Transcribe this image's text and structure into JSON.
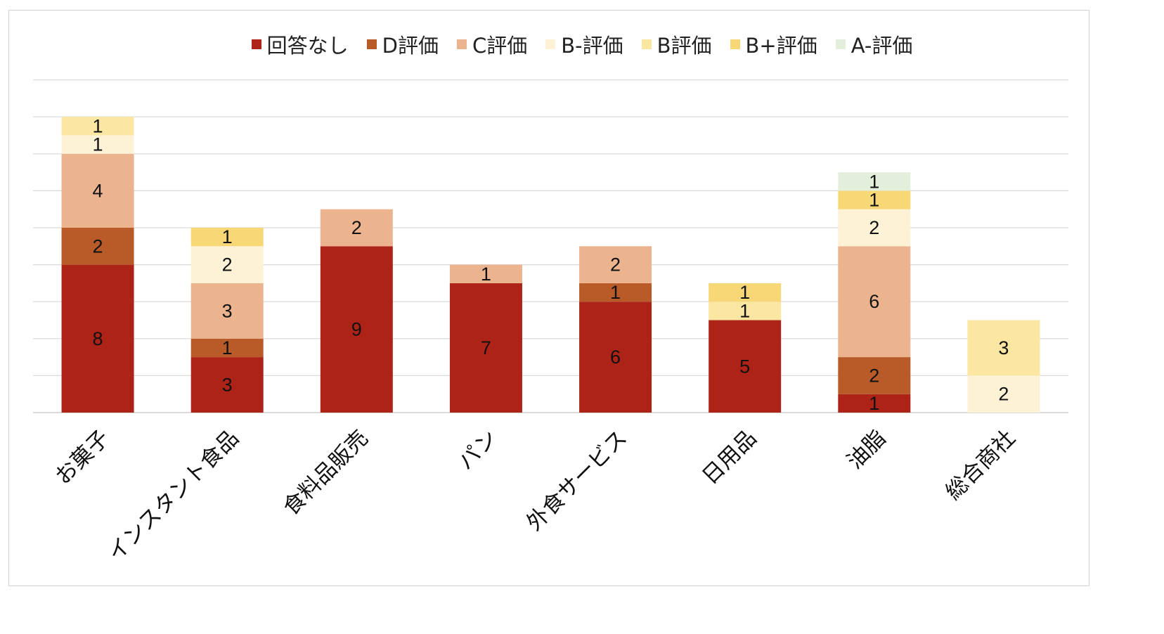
{
  "chart_data": {
    "type": "bar",
    "stacked": true,
    "title": "",
    "xlabel": "",
    "ylabel": "",
    "ylim": [
      0,
      18
    ],
    "grid": true,
    "legend_position": "top",
    "categories": [
      "お菓子",
      "インスタント食品",
      "食料品販売",
      "パン",
      "外食サービス",
      "日用品",
      "油脂",
      "総合商社"
    ],
    "series": [
      {
        "name": "回答なし",
        "color": "#AE2318",
        "values": [
          8,
          3,
          9,
          7,
          6,
          5,
          1,
          0
        ]
      },
      {
        "name": "D評価",
        "color": "#B85B29",
        "values": [
          2,
          1,
          0,
          0,
          1,
          0,
          2,
          0
        ]
      },
      {
        "name": "C評価",
        "color": "#EBB38E",
        "values": [
          4,
          3,
          2,
          1,
          2,
          0,
          6,
          0
        ]
      },
      {
        "name": "B-評価",
        "color": "#FDF2D6",
        "values": [
          1,
          2,
          0,
          0,
          0,
          0,
          2,
          2
        ]
      },
      {
        "name": "B評価",
        "color": "#FBE6A2",
        "values": [
          1,
          0,
          0,
          0,
          0,
          1,
          0,
          3
        ]
      },
      {
        "name": "B+評価",
        "color": "#F8D777",
        "values": [
          0,
          1,
          0,
          0,
          0,
          1,
          1,
          0
        ]
      },
      {
        "name": "A-評価",
        "color": "#E3EFDA",
        "values": [
          0,
          0,
          0,
          0,
          0,
          0,
          1,
          0
        ]
      }
    ]
  }
}
